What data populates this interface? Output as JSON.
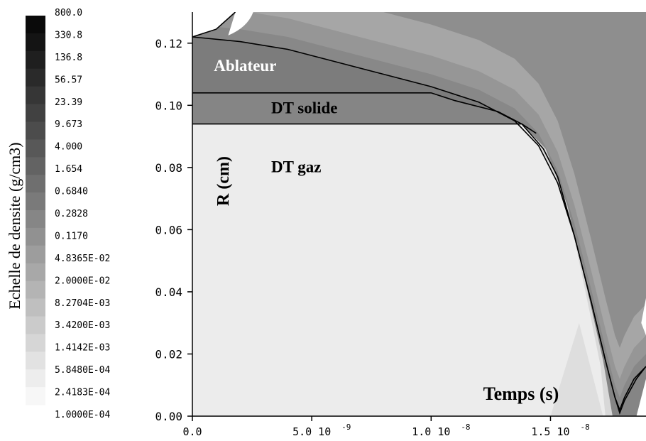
{
  "chart_data": {
    "type": "heatmap",
    "xlabel": "Temps (s)",
    "ylabel": "R (cm)",
    "xlim": [
      0,
      1.9e-08
    ],
    "ylim": [
      0,
      0.13
    ],
    "x_ticks": [
      {
        "value": 0,
        "label": "0.0",
        "exp": ""
      },
      {
        "value": 5e-09,
        "label": "5.0 10",
        "exp": "-9"
      },
      {
        "value": 1e-08,
        "label": "1.0 10",
        "exp": "-8"
      },
      {
        "value": 1.5e-08,
        "label": "1.5 10",
        "exp": "-8"
      }
    ],
    "y_ticks": [
      {
        "value": 0.0,
        "label": "0.00"
      },
      {
        "value": 0.02,
        "label": "0.02"
      },
      {
        "value": 0.04,
        "label": "0.04"
      },
      {
        "value": 0.06,
        "label": "0.06"
      },
      {
        "value": 0.08,
        "label": "0.08"
      },
      {
        "value": 0.1,
        "label": "0.10"
      },
      {
        "value": 0.12,
        "label": "0.12"
      }
    ],
    "colorbar": {
      "title": "Echelle de densite (g/cm3)",
      "labels": [
        "800.0",
        "330.8",
        "136.8",
        "56.57",
        "23.39",
        "9.673",
        "4.000",
        "1.654",
        "0.6840",
        "0.2828",
        "0.1170",
        "4.8365E-02",
        "2.0000E-02",
        "8.2704E-03",
        "3.4200E-03",
        "1.4142E-03",
        "5.8480E-04",
        "2.4183E-04",
        "1.0000E-04"
      ],
      "colors": [
        "#0a0a0a",
        "#141414",
        "#1f1f1f",
        "#2a2a2a",
        "#363636",
        "#414141",
        "#4c4c4c",
        "#585858",
        "#636363",
        "#6f6f6f",
        "#7a7a7a",
        "#868686",
        "#919191",
        "#9d9d9d",
        "#a8a8a8",
        "#b4b4b4",
        "#bfbfbf",
        "#cbcbcb",
        "#d6d6d6",
        "#e2e2e2",
        "#ededed",
        "#f7f7f7"
      ]
    },
    "region_labels": [
      {
        "text": "Ablateur",
        "x": 9e-10,
        "y": 0.111
      },
      {
        "text": "DT solide",
        "x": 3.3e-09,
        "y": 0.0975
      },
      {
        "text": "DT gaz",
        "x": 3.3e-09,
        "y": 0.0785
      }
    ],
    "outer_boundary": [
      [
        0,
        0.122
      ],
      [
        2e-09,
        0.1205
      ],
      [
        4e-09,
        0.118
      ],
      [
        6e-09,
        0.114
      ],
      [
        8e-09,
        0.11
      ],
      [
        1e-08,
        0.106
      ],
      [
        1.2e-08,
        0.101
      ],
      [
        1.35e-08,
        0.095
      ],
      [
        1.45e-08,
        0.087
      ],
      [
        1.53e-08,
        0.075
      ],
      [
        1.6e-08,
        0.058
      ],
      [
        1.67e-08,
        0.037
      ],
      [
        1.73e-08,
        0.018
      ],
      [
        1.77e-08,
        0.006
      ],
      [
        1.79e-08,
        0.002
      ],
      [
        1.81e-08,
        0.006
      ],
      [
        1.85e-08,
        0.012
      ],
      [
        1.9e-08,
        0.016
      ]
    ],
    "inner_boundary": [
      [
        0,
        0.104
      ],
      [
        1e-08,
        0.104
      ],
      [
        1.1e-08,
        0.1015
      ],
      [
        1.28e-08,
        0.098
      ],
      [
        1.38e-08,
        0.094
      ],
      [
        1.47e-08,
        0.086
      ],
      [
        1.53e-08,
        0.077
      ],
      [
        1.6e-08,
        0.058
      ],
      [
        1.67e-08,
        0.037
      ],
      [
        1.73e-08,
        0.018
      ],
      [
        1.77e-08,
        0.006
      ],
      [
        1.79e-08,
        0.001
      ],
      [
        1.81e-08,
        0.005
      ],
      [
        1.86e-08,
        0.012
      ],
      [
        1.9e-08,
        0.016
      ]
    ],
    "fuel_boundary": [
      [
        0,
        0.094
      ],
      [
        1.38e-08,
        0.094
      ],
      [
        1.44e-08,
        0.091
      ]
    ],
    "upper_left_curve": [
      [
        0,
        0.122
      ],
      [
        1e-09,
        0.1245
      ],
      [
        1.8e-09,
        0.13
      ]
    ]
  }
}
